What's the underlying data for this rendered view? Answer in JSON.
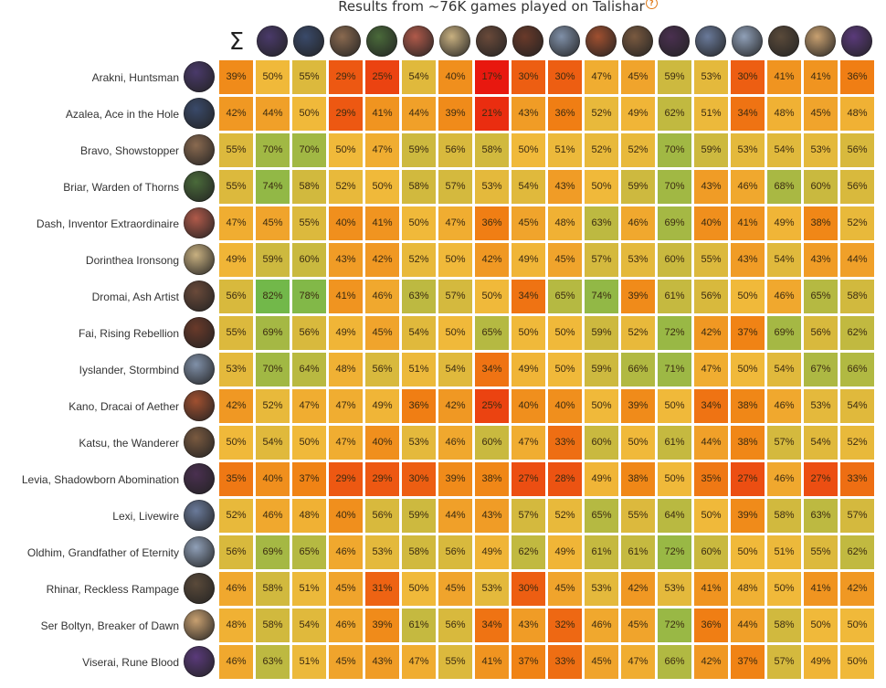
{
  "title": "Results from ~76K games played on Talishar",
  "help_icon": "question-circle-icon",
  "chart_data": {
    "type": "heatmap",
    "title": "Results from ~76K games played on Talishar",
    "corner_label": "Σ",
    "value_suffix": "%",
    "color_scale": {
      "low": "#e8180f",
      "mid": "#f0b93a",
      "high": "#72b84a",
      "range": [
        17,
        82
      ]
    },
    "rows": [
      "Arakni, Huntsman",
      "Azalea, Ace in the Hole",
      "Bravo, Showstopper",
      "Briar, Warden of Thorns",
      "Dash, Inventor Extraordinaire",
      "Dorinthea Ironsong",
      "Dromai, Ash Artist",
      "Fai, Rising Rebellion",
      "Iyslander, Stormbind",
      "Kano, Dracai of Aether",
      "Katsu, the Wanderer",
      "Levia, Shadowborn Abomination",
      "Lexi, Livewire",
      "Oldhim, Grandfather of Eternity",
      "Rhinar, Reckless Rampage",
      "Ser Boltyn, Breaker of Dawn",
      "Viserai, Rune Blood"
    ],
    "avatar_colors": [
      "#4a3a6a",
      "#3a4a6a",
      "#8a6a50",
      "#4a6a3a",
      "#b05a4a",
      "#c8b080",
      "#6a4a3a",
      "#6a3a2a",
      "#8090a8",
      "#a05030",
      "#7a5a40",
      "#4a3050",
      "#6a7a9a",
      "#90a0b8",
      "#5a4a3a",
      "#c8a070",
      "#5a3a7a"
    ],
    "values": [
      [
        39,
        50,
        55,
        29,
        25,
        54,
        40,
        17,
        30,
        30,
        47,
        45,
        59,
        53,
        30,
        41,
        41,
        36
      ],
      [
        42,
        44,
        50,
        29,
        41,
        44,
        39,
        21,
        43,
        36,
        52,
        49,
        62,
        51,
        34,
        48,
        45,
        48
      ],
      [
        55,
        70,
        70,
        50,
        47,
        59,
        56,
        58,
        50,
        51,
        52,
        52,
        70,
        59,
        53,
        54,
        53,
        56
      ],
      [
        55,
        74,
        58,
        52,
        50,
        58,
        57,
        53,
        54,
        43,
        50,
        59,
        70,
        43,
        46,
        68,
        60,
        56
      ],
      [
        47,
        45,
        55,
        40,
        41,
        50,
        47,
        36,
        45,
        48,
        63,
        46,
        69,
        40,
        41,
        49,
        38,
        52
      ],
      [
        49,
        59,
        60,
        43,
        42,
        52,
        50,
        42,
        49,
        45,
        57,
        53,
        60,
        55,
        43,
        54,
        43,
        44
      ],
      [
        56,
        82,
        78,
        41,
        46,
        63,
        57,
        50,
        34,
        65,
        74,
        39,
        61,
        56,
        50,
        46,
        65,
        58
      ],
      [
        55,
        69,
        56,
        49,
        45,
        54,
        50,
        65,
        50,
        50,
        59,
        52,
        72,
        42,
        37,
        69,
        56,
        62
      ],
      [
        53,
        70,
        64,
        48,
        56,
        51,
        54,
        34,
        49,
        50,
        59,
        66,
        71,
        47,
        50,
        54,
        67,
        66
      ],
      [
        42,
        52,
        47,
        47,
        49,
        36,
        42,
        25,
        40,
        40,
        50,
        39,
        50,
        34,
        38,
        46,
        53,
        54
      ],
      [
        50,
        54,
        50,
        47,
        40,
        53,
        46,
        60,
        47,
        33,
        60,
        50,
        61,
        44,
        38,
        57,
        54,
        52
      ],
      [
        35,
        40,
        37,
        29,
        29,
        30,
        39,
        38,
        27,
        28,
        49,
        38,
        50,
        35,
        27,
        46,
        27,
        33
      ],
      [
        52,
        46,
        48,
        40,
        56,
        59,
        44,
        43,
        57,
        52,
        65,
        55,
        64,
        50,
        39,
        58,
        63,
        57
      ],
      [
        56,
        69,
        65,
        46,
        53,
        58,
        56,
        49,
        62,
        49,
        61,
        61,
        72,
        60,
        50,
        51,
        55,
        62
      ],
      [
        46,
        58,
        51,
        45,
        31,
        50,
        45,
        53,
        30,
        45,
        53,
        42,
        53,
        41,
        48,
        50,
        41,
        42
      ],
      [
        48,
        58,
        54,
        46,
        39,
        61,
        56,
        34,
        43,
        32,
        46,
        45,
        72,
        36,
        44,
        58,
        50,
        50
      ],
      [
        46,
        63,
        51,
        45,
        43,
        47,
        55,
        41,
        37,
        33,
        45,
        47,
        66,
        42,
        37,
        57,
        49,
        50
      ]
    ]
  }
}
